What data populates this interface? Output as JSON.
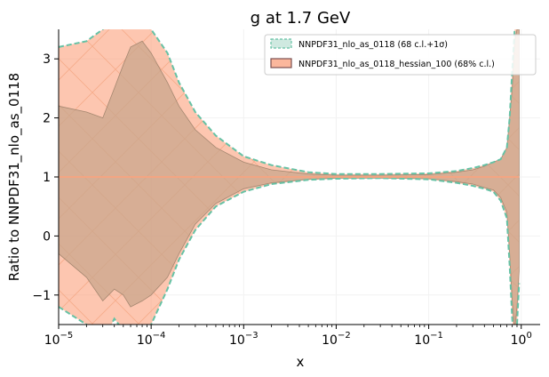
{
  "chart_data": {
    "type": "area",
    "title": "g at 1.7 GeV",
    "xlabel": "x",
    "ylabel": "Ratio to NNPDF31_nlo_as_0118",
    "xscale": "log",
    "xlim": [
      1e-05,
      1.6
    ],
    "ylim": [
      -1.5,
      3.5
    ],
    "xticks": [
      {
        "value": 1e-05,
        "base": "10",
        "exp": "−5"
      },
      {
        "value": 0.0001,
        "base": "10",
        "exp": "−4"
      },
      {
        "value": 0.001,
        "base": "10",
        "exp": "−3"
      },
      {
        "value": 0.01,
        "base": "10",
        "exp": "−2"
      },
      {
        "value": 0.1,
        "base": "10",
        "exp": "−1"
      },
      {
        "value": 1,
        "base": "10",
        "exp": "0"
      }
    ],
    "yticks": [
      {
        "value": -1,
        "label": "−1"
      },
      {
        "value": 0,
        "label": "0"
      },
      {
        "value": 1,
        "label": "1"
      },
      {
        "value": 2,
        "label": "2"
      },
      {
        "value": 3,
        "label": "3"
      }
    ],
    "grid": true,
    "legend_position": "top-right",
    "colors": {
      "series1_line": "#66c2a5",
      "series1_fill": "#cfe9e0",
      "series2_edge": "#7b4f4f",
      "series2_fill": "#fc8d62",
      "central_line": "#f4a582",
      "hatch": "#f4a582"
    },
    "series": [
      {
        "name": "NNPDF31_nlo_as_0118 (68 c.l.+1σ)",
        "style": "dashed band with hatch",
        "x": [
          1e-05,
          2e-05,
          3e-05,
          4e-05,
          5e-05,
          6e-05,
          8e-05,
          0.0001,
          0.00015,
          0.0002,
          0.0003,
          0.0005,
          0.001,
          0.002,
          0.005,
          0.01,
          0.03,
          0.1,
          0.2,
          0.3,
          0.4,
          0.5,
          0.6,
          0.7,
          0.75,
          0.8,
          0.85,
          0.9,
          0.95
        ],
        "upper": [
          3.2,
          3.3,
          3.5,
          3.8,
          3.9,
          3.7,
          3.6,
          3.5,
          3.1,
          2.6,
          2.1,
          1.7,
          1.35,
          1.2,
          1.08,
          1.05,
          1.05,
          1.06,
          1.1,
          1.15,
          1.2,
          1.25,
          1.3,
          1.5,
          2.0,
          2.8,
          3.5,
          3.7,
          3.7
        ],
        "lower": [
          -1.2,
          -1.5,
          -1.8,
          -1.4,
          -1.6,
          -1.8,
          -1.7,
          -1.5,
          -0.9,
          -0.4,
          0.1,
          0.5,
          0.75,
          0.88,
          0.95,
          0.97,
          0.98,
          0.96,
          0.9,
          0.85,
          0.8,
          0.75,
          0.6,
          0.3,
          -0.5,
          -1.4,
          -1.9,
          -1.5,
          -0.8
        ]
      },
      {
        "name": "NNPDF31_nlo_as_0118_hessian_100 (68% c.l.)",
        "style": "filled band",
        "x": [
          1e-05,
          2e-05,
          3e-05,
          4e-05,
          5e-05,
          6e-05,
          8e-05,
          0.0001,
          0.00015,
          0.0002,
          0.0003,
          0.0005,
          0.001,
          0.002,
          0.005,
          0.01,
          0.03,
          0.1,
          0.2,
          0.3,
          0.4,
          0.5,
          0.6,
          0.7,
          0.75,
          0.8,
          0.85,
          0.9,
          0.95
        ],
        "upper": [
          2.2,
          2.1,
          2.0,
          2.5,
          2.9,
          3.2,
          3.3,
          3.1,
          2.6,
          2.2,
          1.8,
          1.5,
          1.25,
          1.12,
          1.05,
          1.03,
          1.03,
          1.04,
          1.08,
          1.12,
          1.18,
          1.25,
          1.3,
          1.5,
          2.0,
          2.5,
          3.3,
          3.5,
          3.5
        ],
        "lower": [
          -0.3,
          -0.7,
          -1.1,
          -0.9,
          -1.0,
          -1.2,
          -1.1,
          -1.0,
          -0.7,
          -0.3,
          0.2,
          0.55,
          0.8,
          0.9,
          0.96,
          0.98,
          0.98,
          0.97,
          0.92,
          0.88,
          0.82,
          0.78,
          0.65,
          0.4,
          -0.3,
          -1.1,
          -1.6,
          -1.2,
          -0.6
        ]
      }
    ],
    "central": {
      "x_range": [
        1e-05,
        0.95
      ],
      "value": 1.0
    }
  }
}
